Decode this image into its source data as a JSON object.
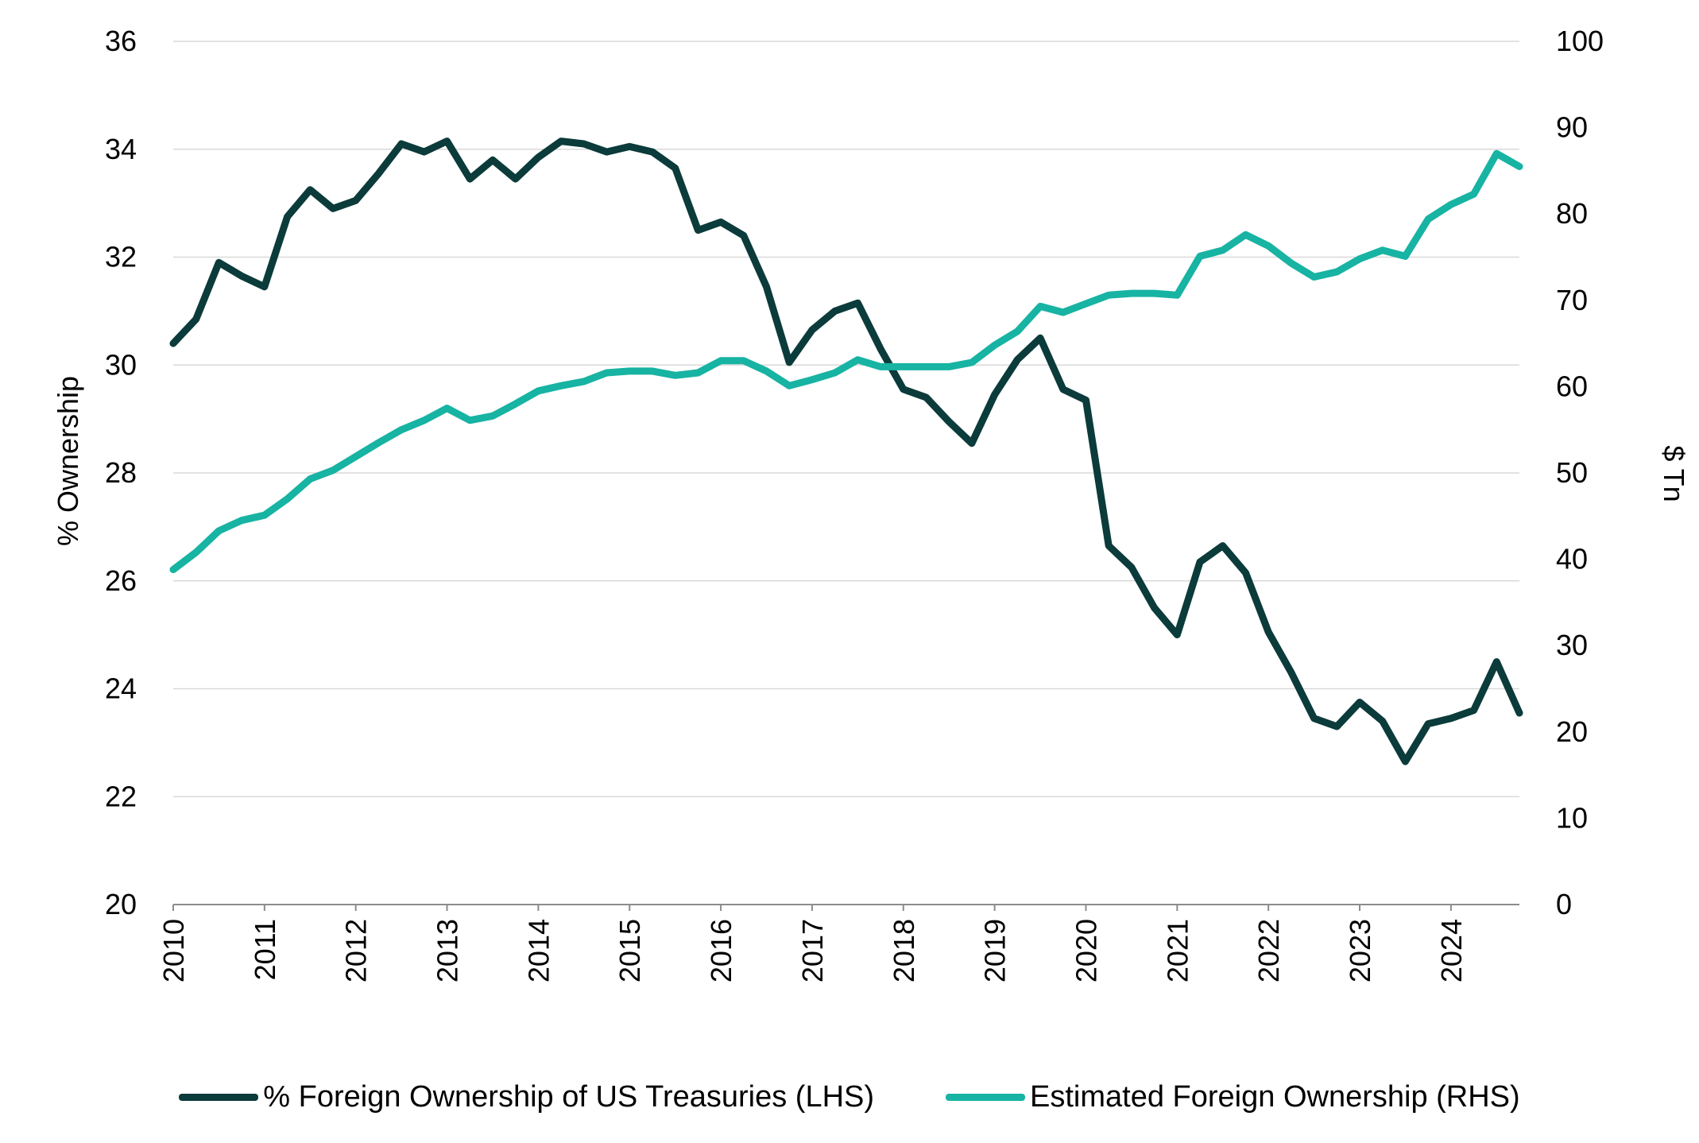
{
  "chart_data": {
    "type": "line",
    "title": "",
    "ylabel_left": "% Ownership",
    "ylabel_right": "$ Tn",
    "y_left_ticks": [
      "20",
      "22",
      "24",
      "26",
      "28",
      "30",
      "32",
      "34",
      "36"
    ],
    "y_right_ticks": [
      "0",
      "10",
      "20",
      "30",
      "40",
      "50",
      "60",
      "70",
      "80",
      "90",
      "100"
    ],
    "x_ticks": [
      "2010",
      "2011",
      "2012",
      "2013",
      "2014",
      "2015",
      "2016",
      "2017",
      "2018",
      "2019",
      "2020",
      "2021",
      "2022",
      "2023",
      "2024"
    ],
    "ylim_left": [
      20,
      36
    ],
    "ylim_right": [
      0,
      100
    ],
    "xlim": [
      2010,
      2024.75
    ],
    "grid": true,
    "legend_position": "bottom",
    "series": [
      {
        "name": "% Foreign Ownership of US Treasuries (LHS)",
        "axis": "left",
        "color": "#0b3b3a",
        "points": [
          [
            2010.0,
            30.4
          ],
          [
            2010.25,
            30.85
          ],
          [
            2010.5,
            31.9
          ],
          [
            2010.75,
            31.65
          ],
          [
            2011.0,
            31.45
          ],
          [
            2011.25,
            32.75
          ],
          [
            2011.5,
            33.25
          ],
          [
            2011.75,
            32.9
          ],
          [
            2012.0,
            33.05
          ],
          [
            2012.25,
            33.55
          ],
          [
            2012.5,
            34.1
          ],
          [
            2012.75,
            33.95
          ],
          [
            2013.0,
            34.15
          ],
          [
            2013.25,
            33.45
          ],
          [
            2013.5,
            33.8
          ],
          [
            2013.75,
            33.45
          ],
          [
            2014.0,
            33.85
          ],
          [
            2014.25,
            34.15
          ],
          [
            2014.5,
            34.1
          ],
          [
            2014.75,
            33.95
          ],
          [
            2015.0,
            34.05
          ],
          [
            2015.25,
            33.95
          ],
          [
            2015.5,
            33.65
          ],
          [
            2015.75,
            32.5
          ],
          [
            2016.0,
            32.65
          ],
          [
            2016.25,
            32.4
          ],
          [
            2016.5,
            31.45
          ],
          [
            2016.75,
            30.05
          ],
          [
            2017.0,
            30.65
          ],
          [
            2017.25,
            31.0
          ],
          [
            2017.5,
            31.15
          ],
          [
            2017.75,
            30.3
          ],
          [
            2018.0,
            29.55
          ],
          [
            2018.25,
            29.4
          ],
          [
            2018.5,
            28.95
          ],
          [
            2018.75,
            28.55
          ],
          [
            2019.0,
            29.45
          ],
          [
            2019.25,
            30.1
          ],
          [
            2019.5,
            30.5
          ],
          [
            2019.75,
            29.55
          ],
          [
            2020.0,
            29.35
          ],
          [
            2020.25,
            26.65
          ],
          [
            2020.5,
            26.25
          ],
          [
            2020.75,
            25.5
          ],
          [
            2021.0,
            25.0
          ],
          [
            2021.25,
            26.35
          ],
          [
            2021.5,
            26.65
          ],
          [
            2021.75,
            26.15
          ],
          [
            2022.0,
            25.05
          ],
          [
            2022.25,
            24.3
          ],
          [
            2022.5,
            23.45
          ],
          [
            2022.75,
            23.3
          ],
          [
            2023.0,
            23.75
          ],
          [
            2023.25,
            23.4
          ],
          [
            2023.5,
            22.65
          ],
          [
            2023.75,
            23.35
          ],
          [
            2024.0,
            23.45
          ],
          [
            2024.25,
            23.6
          ],
          [
            2024.5,
            24.5
          ],
          [
            2024.75,
            23.55
          ]
        ]
      },
      {
        "name": "Estimated Foreign Ownership (RHS)",
        "axis": "right",
        "color": "#17b3a3",
        "points": [
          [
            2010.0,
            38.8
          ],
          [
            2010.25,
            40.8
          ],
          [
            2010.5,
            43.3
          ],
          [
            2010.75,
            44.5
          ],
          [
            2011.0,
            45.1
          ],
          [
            2011.25,
            47.0
          ],
          [
            2011.5,
            49.3
          ],
          [
            2011.75,
            50.3
          ],
          [
            2012.0,
            51.9
          ],
          [
            2012.25,
            53.5
          ],
          [
            2012.5,
            55.0
          ],
          [
            2012.75,
            56.1
          ],
          [
            2013.0,
            57.5
          ],
          [
            2013.25,
            56.1
          ],
          [
            2013.5,
            56.6
          ],
          [
            2013.75,
            58.0
          ],
          [
            2014.0,
            59.5
          ],
          [
            2014.25,
            60.1
          ],
          [
            2014.5,
            60.6
          ],
          [
            2014.75,
            61.6
          ],
          [
            2015.0,
            61.8
          ],
          [
            2015.25,
            61.8
          ],
          [
            2015.5,
            61.3
          ],
          [
            2015.75,
            61.6
          ],
          [
            2016.0,
            63.0
          ],
          [
            2016.25,
            63.0
          ],
          [
            2016.5,
            61.8
          ],
          [
            2016.75,
            60.1
          ],
          [
            2017.0,
            60.8
          ],
          [
            2017.25,
            61.6
          ],
          [
            2017.5,
            63.1
          ],
          [
            2017.75,
            62.3
          ],
          [
            2018.0,
            62.3
          ],
          [
            2018.25,
            62.3
          ],
          [
            2018.5,
            62.3
          ],
          [
            2018.75,
            62.8
          ],
          [
            2019.0,
            64.8
          ],
          [
            2019.25,
            66.4
          ],
          [
            2019.5,
            69.3
          ],
          [
            2019.75,
            68.6
          ],
          [
            2020.0,
            69.6
          ],
          [
            2020.25,
            70.6
          ],
          [
            2020.5,
            70.8
          ],
          [
            2020.75,
            70.8
          ],
          [
            2021.0,
            70.6
          ],
          [
            2021.25,
            75.1
          ],
          [
            2021.5,
            75.8
          ],
          [
            2021.75,
            77.6
          ],
          [
            2022.0,
            76.3
          ],
          [
            2022.25,
            74.3
          ],
          [
            2022.5,
            72.7
          ],
          [
            2022.75,
            73.3
          ],
          [
            2023.0,
            74.8
          ],
          [
            2023.25,
            75.8
          ],
          [
            2023.5,
            75.1
          ],
          [
            2023.75,
            79.4
          ],
          [
            2024.0,
            81.1
          ],
          [
            2024.25,
            82.3
          ],
          [
            2024.5,
            87.0
          ],
          [
            2024.75,
            85.5
          ]
        ]
      }
    ]
  }
}
